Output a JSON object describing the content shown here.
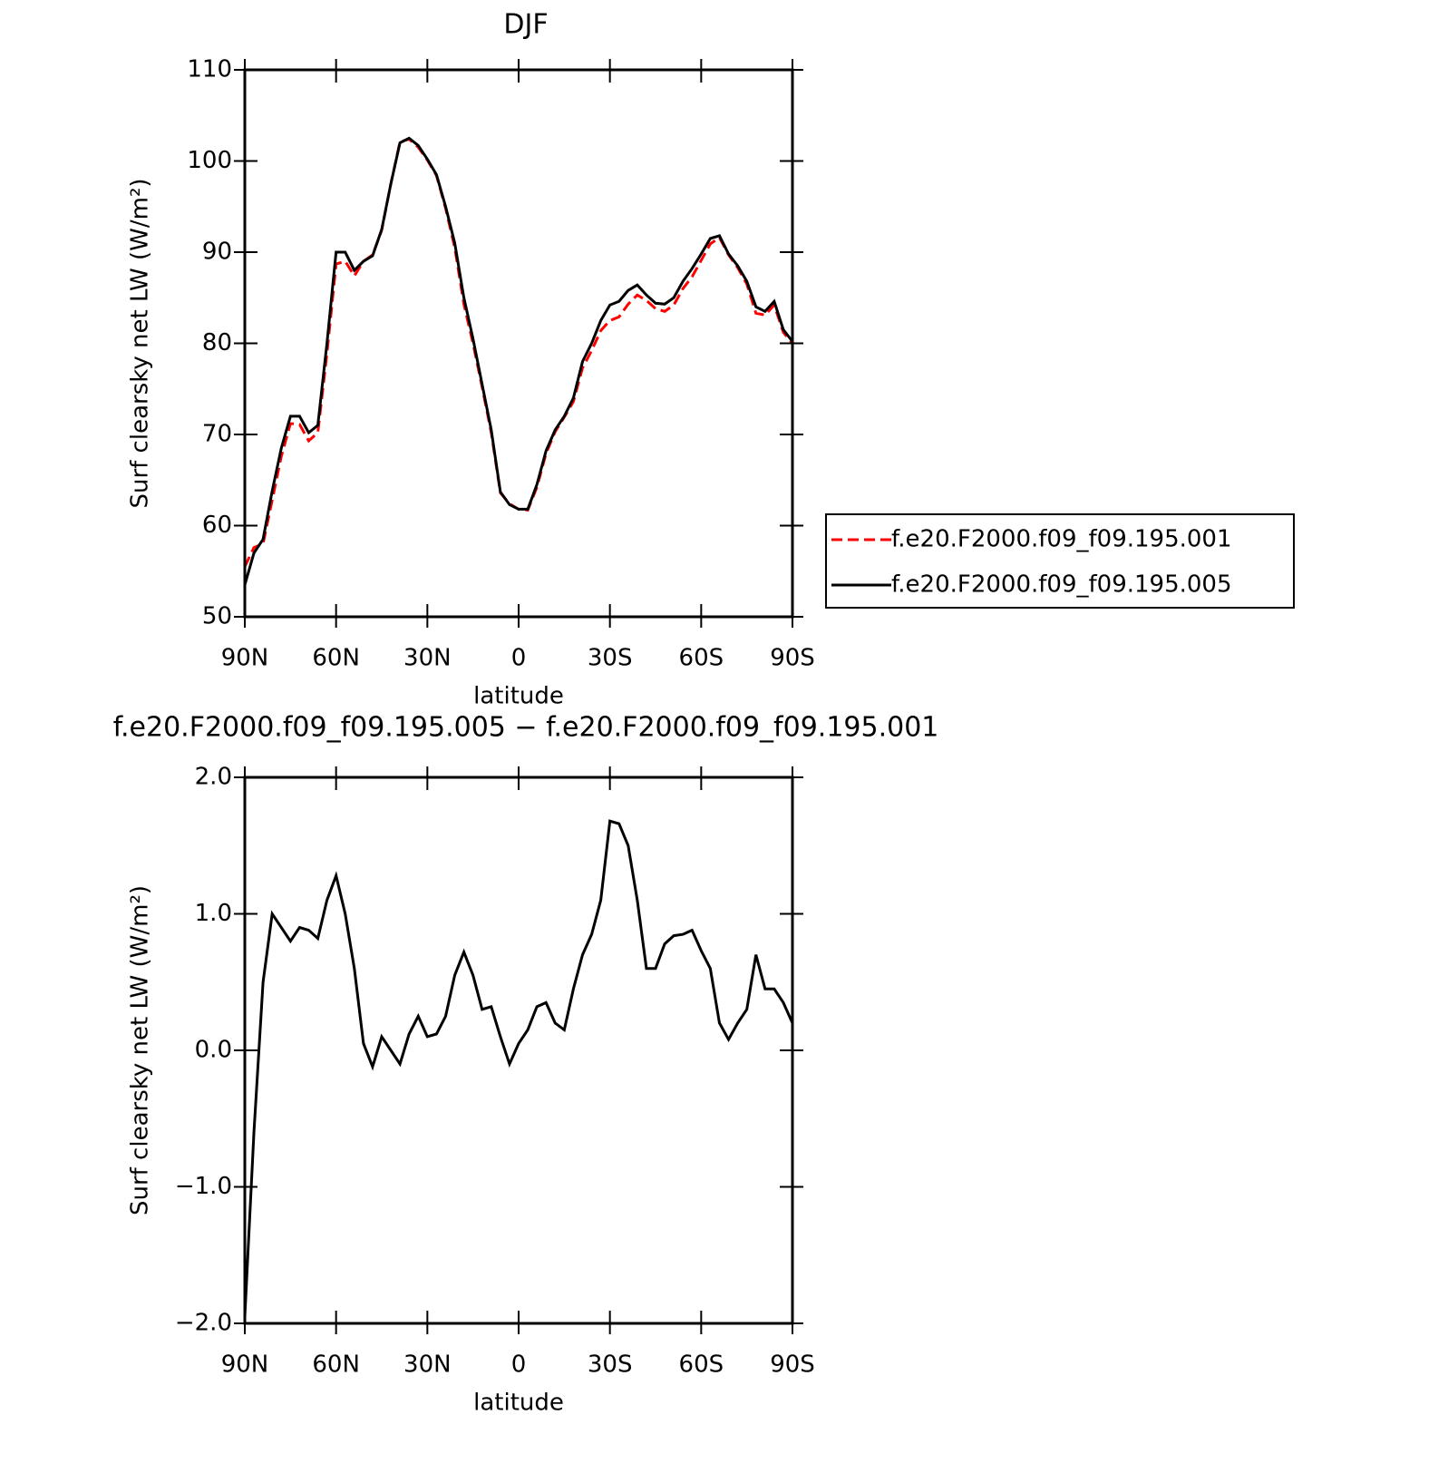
{
  "chart_data": [
    {
      "type": "line",
      "title": "DJF",
      "xlabel": "latitude",
      "ylabel": "Surf clearsky net LW (W/m²)",
      "x": [
        90,
        87,
        84,
        81,
        78,
        75,
        72,
        69,
        66,
        63,
        60,
        57,
        54,
        51,
        48,
        45,
        42,
        39,
        36,
        33,
        30,
        27,
        24,
        21,
        18,
        15,
        12,
        9,
        6,
        3,
        0,
        -3,
        -6,
        -9,
        -12,
        -15,
        -18,
        -21,
        -24,
        -27,
        -30,
        -33,
        -36,
        -39,
        -42,
        -45,
        -48,
        -51,
        -54,
        -57,
        -60,
        -63,
        -66,
        -69,
        -72,
        -75,
        -78,
        -81,
        -84,
        -87,
        -90
      ],
      "series": [
        {
          "name": "f.e20.F2000.f09_f09.195.001",
          "color": "#ff0000",
          "line_style": "dashed",
          "values": [
            55.5,
            57.6,
            58.0,
            62.8,
            67.6,
            71.2,
            71.1,
            69.3,
            70.2,
            78.9,
            88.7,
            89.0,
            87.4,
            89.0,
            89.7,
            92.4,
            97.5,
            102.1,
            102.4,
            101.5,
            100.1,
            98.4,
            94.8,
            90.5,
            84.3,
            80.0,
            75.2,
            70.2,
            63.6,
            62.4,
            61.8,
            61.7,
            64.2,
            67.9,
            70.3,
            71.9,
            73.6,
            77.3,
            79.2,
            81.4,
            82.5,
            82.9,
            84.3,
            85.3,
            84.7,
            83.8,
            83.5,
            84.2,
            86.0,
            87.3,
            89.1,
            90.9,
            91.6,
            89.7,
            88.3,
            86.5,
            83.3,
            83.1,
            84.2,
            81.2,
            80.0
          ]
        },
        {
          "name": "f.e20.F2000.f09_f09.195.005",
          "color": "#000000",
          "line_style": "solid",
          "values": [
            53.5,
            57.0,
            58.5,
            63.8,
            68.5,
            72.0,
            72.0,
            70.2,
            71.0,
            80.0,
            90.0,
            90.0,
            88.0,
            89.0,
            89.6,
            92.5,
            97.5,
            102.0,
            102.5,
            101.7,
            100.2,
            98.5,
            95.0,
            91.0,
            85.0,
            80.5,
            75.5,
            70.5,
            63.7,
            62.3,
            61.8,
            61.8,
            64.5,
            68.2,
            70.5,
            72.0,
            74.0,
            78.0,
            80.0,
            82.5,
            84.2,
            84.6,
            85.8,
            86.4,
            85.3,
            84.4,
            84.3,
            85.0,
            86.8,
            88.2,
            89.8,
            91.5,
            91.8,
            89.8,
            88.5,
            86.8,
            84.0,
            83.5,
            84.6,
            81.5,
            80.2
          ]
        }
      ],
      "xlim": [
        90,
        -90
      ],
      "xticks": [
        {
          "value": 90,
          "label": "90N"
        },
        {
          "value": 60,
          "label": "60N"
        },
        {
          "value": 30,
          "label": "30N"
        },
        0,
        {
          "value": -30,
          "label": "30S"
        },
        {
          "value": -60,
          "label": "60S"
        },
        {
          "value": -90,
          "label": "90S"
        }
      ],
      "ylim": [
        50,
        110
      ],
      "yticks": [
        50,
        60,
        70,
        80,
        90,
        100,
        110
      ],
      "legend": "right"
    },
    {
      "type": "line",
      "title": "f.e20.F2000.f09_f09.195.005 − f.e20.F2000.f09_f09.195.001",
      "xlabel": "latitude",
      "ylabel": "Surf clearsky net LW (W/m²)",
      "x": [
        90,
        87,
        84,
        81,
        78,
        75,
        72,
        69,
        66,
        63,
        60,
        57,
        54,
        51,
        48,
        45,
        42,
        39,
        36,
        33,
        30,
        27,
        24,
        21,
        18,
        15,
        12,
        9,
        6,
        3,
        0,
        -3,
        -6,
        -9,
        -12,
        -15,
        -18,
        -21,
        -24,
        -27,
        -30,
        -33,
        -36,
        -39,
        -42,
        -45,
        -48,
        -51,
        -54,
        -57,
        -60,
        -63,
        -66,
        -69,
        -72,
        -75,
        -78,
        -81,
        -84,
        -87,
        -90
      ],
      "series": [
        {
          "color": "#000000",
          "line_style": "solid",
          "values": [
            -1.95,
            -0.6,
            0.5,
            1.0,
            0.9,
            0.8,
            0.9,
            0.88,
            0.82,
            1.1,
            1.28,
            1.0,
            0.6,
            0.05,
            -0.12,
            0.1,
            0.0,
            -0.1,
            0.12,
            0.25,
            0.1,
            0.12,
            0.25,
            0.55,
            0.72,
            0.55,
            0.3,
            0.32,
            0.1,
            -0.1,
            0.05,
            0.15,
            0.32,
            0.35,
            0.2,
            0.15,
            0.45,
            0.7,
            0.85,
            1.1,
            1.68,
            1.66,
            1.5,
            1.1,
            0.6,
            0.6,
            0.78,
            0.84,
            0.85,
            0.88,
            0.73,
            0.6,
            0.2,
            0.08,
            0.2,
            0.3,
            0.7,
            0.45,
            0.45,
            0.35,
            0.2
          ]
        }
      ],
      "xlim": [
        90,
        -90
      ],
      "xticks": [
        {
          "value": 90,
          "label": "90N"
        },
        {
          "value": 60,
          "label": "60N"
        },
        {
          "value": 30,
          "label": "30N"
        },
        0,
        {
          "value": -30,
          "label": "30S"
        },
        {
          "value": -60,
          "label": "60S"
        },
        {
          "value": -90,
          "label": "90S"
        }
      ],
      "ylim": [
        -2,
        2
      ],
      "yticks": [
        {
          "value": -2,
          "label": "−2.0"
        },
        {
          "value": -1,
          "label": "−1.0"
        },
        {
          "value": 0,
          "label": "0.0"
        },
        {
          "value": 1,
          "label": "1.0"
        },
        {
          "value": 2,
          "label": "2.0"
        }
      ]
    }
  ]
}
